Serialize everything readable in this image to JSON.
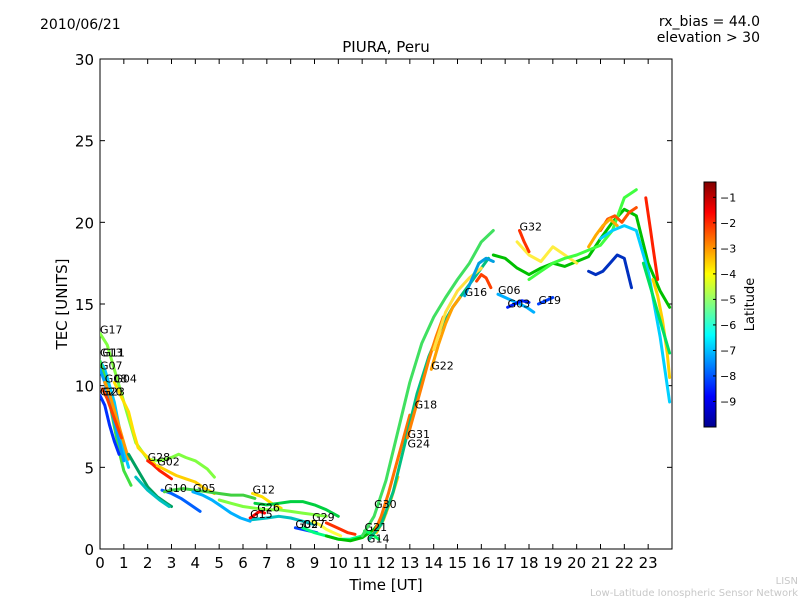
{
  "header": {
    "date": "2010/06/21",
    "params": [
      "rx_bias = 44.0",
      "elevation > 30"
    ]
  },
  "footer": {
    "line1": "LISN",
    "line2": "Low-Latitude Ionospheric Sensor Network"
  },
  "colors": {
    "colormap": [
      "#00008f",
      "#0000ff",
      "#0080ff",
      "#00ffff",
      "#80ff80",
      "#ffff00",
      "#ff8000",
      "#ff0000",
      "#800000"
    ]
  },
  "chart_data": {
    "type": "scatter",
    "title": "PIURA, Peru",
    "xlabel": "Time [UT]",
    "ylabel": "TEC [UNITS]",
    "xlim": [
      0,
      24
    ],
    "ylim": [
      0,
      30
    ],
    "xticks": [
      "0",
      "1",
      "2",
      "3",
      "4",
      "5",
      "6",
      "7",
      "8",
      "9",
      "10",
      "11",
      "12",
      "13",
      "14",
      "15",
      "16",
      "17",
      "18",
      "19",
      "20",
      "21",
      "22",
      "23"
    ],
    "yticks": [
      "0",
      "5",
      "10",
      "15",
      "20",
      "25",
      "30"
    ],
    "grid": false,
    "colorbar": {
      "label": "Latitude",
      "min": -10,
      "max": -0.4,
      "ticks": [
        "-1",
        "-2",
        "-3",
        "-4",
        "-5",
        "-6",
        "-7",
        "-8",
        "-9"
      ]
    },
    "satellite_labels": [
      {
        "name": "G17",
        "x": 0.0,
        "y": 13.2
      },
      {
        "name": "G13",
        "x": 0.0,
        "y": 11.8
      },
      {
        "name": "G11",
        "x": 0.1,
        "y": 11.8
      },
      {
        "name": "G07",
        "x": 0.0,
        "y": 11.0
      },
      {
        "name": "G08",
        "x": 0.2,
        "y": 10.2
      },
      {
        "name": "G04",
        "x": 0.6,
        "y": 10.2
      },
      {
        "name": "G20",
        "x": 0.0,
        "y": 9.4
      },
      {
        "name": "G23",
        "x": 0.1,
        "y": 9.4
      },
      {
        "name": "G28",
        "x": 2.0,
        "y": 5.4
      },
      {
        "name": "G02",
        "x": 2.4,
        "y": 5.1
      },
      {
        "name": "G10",
        "x": 2.7,
        "y": 3.5
      },
      {
        "name": "G05",
        "x": 3.9,
        "y": 3.5
      },
      {
        "name": "G12",
        "x": 6.4,
        "y": 3.4
      },
      {
        "name": "G26",
        "x": 6.6,
        "y": 2.3
      },
      {
        "name": "G15",
        "x": 6.3,
        "y": 1.9
      },
      {
        "name": "G29",
        "x": 8.9,
        "y": 1.7
      },
      {
        "name": "G09",
        "x": 8.2,
        "y": 1.3
      },
      {
        "name": "G27",
        "x": 8.5,
        "y": 1.3
      },
      {
        "name": "G30",
        "x": 11.5,
        "y": 2.5
      },
      {
        "name": "G21",
        "x": 11.1,
        "y": 1.1
      },
      {
        "name": "G14",
        "x": 11.2,
        "y": 0.4
      },
      {
        "name": "G31",
        "x": 12.9,
        "y": 6.8
      },
      {
        "name": "G24",
        "x": 12.9,
        "y": 6.2
      },
      {
        "name": "G18",
        "x": 13.2,
        "y": 8.6
      },
      {
        "name": "G22",
        "x": 13.9,
        "y": 11.0
      },
      {
        "name": "G16",
        "x": 15.3,
        "y": 15.5
      },
      {
        "name": "G06",
        "x": 16.7,
        "y": 15.6
      },
      {
        "name": "G03",
        "x": 17.1,
        "y": 14.8
      },
      {
        "name": "G19",
        "x": 18.4,
        "y": 15.0
      },
      {
        "name": "G32",
        "x": 17.6,
        "y": 19.5
      }
    ],
    "series": [
      {
        "color": "#80ff40",
        "x": [
          0,
          0.3,
          0.6,
          0.9,
          1.1,
          1.3,
          1.5,
          2,
          2.5,
          3,
          3.3,
          3.6,
          4,
          4.5,
          4.8
        ],
        "y": [
          13.2,
          12.5,
          11,
          9.5,
          8.5,
          7.5,
          6.5,
          5.5,
          5.4,
          5.6,
          5.8,
          5.6,
          5.4,
          4.9,
          4.4
        ]
      },
      {
        "color": "#00c8ff",
        "x": [
          0,
          0.2,
          0.4,
          0.6,
          0.8,
          1.0,
          1.2
        ],
        "y": [
          11.5,
          11.0,
          10.0,
          9.0,
          7.5,
          6.0,
          5.0
        ]
      },
      {
        "color": "#40e040",
        "x": [
          0,
          0.2,
          0.4,
          0.6,
          0.8,
          1.0,
          1.2,
          1.3
        ],
        "y": [
          11.5,
          10.5,
          9.0,
          7.5,
          6.0,
          4.8,
          4.2,
          3.9
        ]
      },
      {
        "color": "#00a0ff",
        "x": [
          0,
          0.2,
          0.4,
          0.6,
          0.8,
          1.0
        ],
        "y": [
          11.0,
          10.2,
          9.0,
          7.8,
          6.6,
          5.4
        ]
      },
      {
        "color": "#ff9900",
        "x": [
          0.2,
          0.4,
          0.6,
          0.8,
          1.0,
          1.2
        ],
        "y": [
          10.2,
          9.5,
          8.5,
          7.5,
          6.5,
          5.5
        ]
      },
      {
        "color": "#ffe000",
        "x": [
          0.6,
          0.8,
          1.0,
          1.2,
          1.4,
          1.6,
          2.0,
          2.3
        ],
        "y": [
          10.2,
          9.6,
          9.0,
          8.4,
          7.2,
          6.2,
          5.6,
          5.2
        ]
      },
      {
        "color": "#0030ff",
        "x": [
          0,
          0.2,
          0.4,
          0.6,
          0.8
        ],
        "y": [
          9.4,
          8.8,
          7.6,
          6.6,
          5.8
        ]
      },
      {
        "color": "#ff4000",
        "x": [
          0.1,
          0.3,
          0.5,
          0.7,
          0.9
        ],
        "y": [
          9.8,
          9.2,
          8.4,
          7.6,
          6.8
        ]
      },
      {
        "color": "#ff2000",
        "x": [
          2.0,
          2.2,
          2.5,
          2.8,
          3.0
        ],
        "y": [
          5.4,
          5.2,
          4.8,
          4.5,
          4.3
        ]
      },
      {
        "color": "#ffd000",
        "x": [
          2.4,
          2.8,
          3.2,
          3.6,
          4.0,
          4.4,
          4.8
        ],
        "y": [
          5.1,
          4.8,
          4.5,
          4.3,
          4.1,
          3.7,
          3.4
        ]
      },
      {
        "color": "#00a060",
        "x": [
          1.2,
          1.6,
          2.0,
          2.4,
          2.8,
          3.0
        ],
        "y": [
          5.8,
          4.8,
          3.8,
          3.2,
          2.8,
          2.6
        ]
      },
      {
        "color": "#0060ff",
        "x": [
          2.6,
          3.0,
          3.4,
          3.8,
          4.2
        ],
        "y": [
          3.6,
          3.4,
          3.1,
          2.7,
          2.3
        ]
      },
      {
        "color": "#00c0c0",
        "x": [
          1.5,
          2.0,
          2.5,
          2.9
        ],
        "y": [
          4.4,
          3.6,
          3.0,
          2.6
        ]
      },
      {
        "color": "#40d040",
        "x": [
          2.7,
          3.0,
          3.5,
          4.0,
          4.5,
          5.0,
          5.5,
          6.0,
          6.5
        ],
        "y": [
          3.5,
          3.6,
          3.7,
          3.6,
          3.5,
          3.4,
          3.3,
          3.3,
          3.1
        ]
      },
      {
        "color": "#00b0ff",
        "x": [
          3.9,
          4.3,
          4.7,
          5.1,
          5.5,
          5.9,
          6.3
        ],
        "y": [
          3.5,
          3.3,
          3.0,
          2.6,
          2.2,
          1.9,
          1.7
        ]
      },
      {
        "color": "#ffe000",
        "x": [
          6.4,
          6.8,
          7.2,
          7.6
        ],
        "y": [
          3.4,
          3.2,
          2.8,
          2.5
        ]
      },
      {
        "color": "#80ff40",
        "x": [
          5.0,
          5.5,
          6.0,
          6.5,
          7.0,
          7.5,
          8.0,
          8.5,
          9.0,
          9.5
        ],
        "y": [
          3.0,
          2.8,
          2.6,
          2.5,
          2.4,
          2.4,
          2.3,
          2.2,
          2.1,
          2.0
        ]
      },
      {
        "color": "#00c0c0",
        "x": [
          6.4,
          7.0,
          7.5,
          8.0,
          8.5,
          9.0
        ],
        "y": [
          1.8,
          1.9,
          2.0,
          1.9,
          1.7,
          1.5
        ]
      },
      {
        "color": "#ff0000",
        "x": [
          6.3,
          6.5,
          6.7,
          6.9
        ],
        "y": [
          1.9,
          2.1,
          2.3,
          2.2
        ]
      },
      {
        "color": "#00d040",
        "x": [
          6.5,
          7.0,
          7.5,
          8.0,
          8.5,
          9.0,
          9.5,
          10.0
        ],
        "y": [
          2.8,
          2.7,
          2.8,
          2.9,
          2.9,
          2.7,
          2.4,
          2.0
        ]
      },
      {
        "color": "#ffff40",
        "x": [
          8.9,
          9.2,
          9.5,
          9.8,
          10.1
        ],
        "y": [
          1.7,
          1.5,
          1.2,
          1.0,
          0.8
        ]
      },
      {
        "color": "#ff3000",
        "x": [
          9.5,
          9.8,
          10.1,
          10.4,
          10.7
        ],
        "y": [
          1.6,
          1.4,
          1.2,
          1.0,
          0.9
        ]
      },
      {
        "color": "#0040ff",
        "x": [
          8.2,
          8.5,
          8.8,
          9.1
        ],
        "y": [
          1.3,
          1.2,
          1.1,
          1.0
        ]
      },
      {
        "color": "#00ff80",
        "x": [
          8.5,
          9.0,
          9.5,
          10.0,
          10.5,
          11.0
        ],
        "y": [
          1.3,
          1.0,
          0.8,
          0.6,
          0.6,
          0.8
        ]
      },
      {
        "color": "#00c000",
        "x": [
          9.5,
          10.0,
          10.5,
          11.0,
          11.5,
          12.0
        ],
        "y": [
          0.8,
          0.6,
          0.5,
          0.7,
          1.2,
          2.2
        ]
      },
      {
        "color": "#00ff60",
        "x": [
          11.1,
          11.3,
          11.5,
          11.7
        ],
        "y": [
          1.1,
          1.0,
          0.8,
          0.6
        ]
      },
      {
        "color": "#ff7000",
        "x": [
          11.5,
          11.8,
          12.1,
          12.4,
          12.7,
          13.0
        ],
        "y": [
          1.0,
          2.0,
          3.4,
          5.0,
          6.6,
          8.2
        ]
      },
      {
        "color": "#ffcc00",
        "x": [
          11.6,
          11.9,
          12.2,
          12.5
        ],
        "y": [
          1.0,
          1.8,
          3.0,
          4.4
        ]
      },
      {
        "color": "#40e060",
        "x": [
          11.0,
          11.5,
          12.0,
          12.5,
          13.0,
          13.5,
          14.0,
          14.5,
          15.0,
          15.5,
          16.0,
          16.5
        ],
        "y": [
          0.8,
          2.0,
          4.2,
          7.2,
          10.2,
          12.6,
          14.2,
          15.4,
          16.5,
          17.5,
          18.8,
          19.5
        ]
      },
      {
        "color": "#00c080",
        "x": [
          11.3,
          11.8,
          12.3,
          12.8,
          13.3,
          13.8,
          14.3,
          14.8,
          15.3,
          15.8,
          16.3
        ],
        "y": [
          0.6,
          1.5,
          3.5,
          6.5,
          9.5,
          11.8,
          13.5,
          14.8,
          15.8,
          16.8,
          17.8
        ]
      },
      {
        "color": "#ff8000",
        "x": [
          12.9,
          13.2,
          13.5,
          13.8,
          14.1,
          14.4
        ],
        "y": [
          6.8,
          8.4,
          10.0,
          11.6,
          13.0,
          14.2
        ]
      },
      {
        "color": "#ffa000",
        "x": [
          13.9,
          14.2,
          14.5,
          14.8,
          15.1
        ],
        "y": [
          11.0,
          12.5,
          13.8,
          14.8,
          15.4
        ]
      },
      {
        "color": "#ffe040",
        "x": [
          14.0,
          14.5,
          15.0,
          15.5,
          16.0
        ],
        "y": [
          12.2,
          14.5,
          15.8,
          16.6,
          17.2
        ]
      },
      {
        "color": "#00a0e0",
        "x": [
          15.3,
          15.6,
          15.9,
          16.2,
          16.5
        ],
        "y": [
          15.5,
          16.5,
          17.5,
          17.8,
          17.6
        ]
      },
      {
        "color": "#ff4000",
        "x": [
          15.8,
          16.0,
          16.2,
          16.4
        ],
        "y": [
          16.4,
          16.8,
          16.6,
          16.0
        ]
      },
      {
        "color": "#00c000",
        "x": [
          16.5,
          17.0,
          17.5,
          18.0,
          18.5,
          19.0,
          19.5,
          20.0,
          20.5,
          21.0,
          21.5,
          22.0,
          22.5,
          23.0,
          23.5,
          23.9
        ],
        "y": [
          18.0,
          17.8,
          17.2,
          16.8,
          17.2,
          17.5,
          17.3,
          17.6,
          17.9,
          19.0,
          20.0,
          20.8,
          20.4,
          17.5,
          15.8,
          14.8
        ]
      },
      {
        "color": "#00b0ff",
        "x": [
          16.7,
          17.0,
          17.3,
          17.6,
          17.9,
          18.2
        ],
        "y": [
          15.6,
          15.4,
          15.2,
          15.0,
          14.8,
          14.5
        ]
      },
      {
        "color": "#0020ff",
        "x": [
          17.1,
          17.4,
          17.7,
          18.0
        ],
        "y": [
          14.8,
          15.0,
          15.2,
          15.1
        ]
      },
      {
        "color": "#0040ff",
        "x": [
          18.4,
          18.7,
          19.0
        ],
        "y": [
          15.0,
          15.2,
          15.4
        ]
      },
      {
        "color": "#ffee40",
        "x": [
          17.5,
          18.0,
          18.5,
          19.0,
          19.5,
          20.0
        ],
        "y": [
          18.8,
          18.0,
          17.6,
          18.5,
          18.0,
          17.5
        ]
      },
      {
        "color": "#ff3000",
        "x": [
          17.6,
          17.8,
          18.0
        ],
        "y": [
          19.5,
          18.8,
          18.2
        ]
      },
      {
        "color": "#40ff40",
        "x": [
          18.0,
          18.5,
          19.0,
          19.5,
          20.0,
          20.5,
          21.0,
          21.5,
          22.0,
          22.5
        ],
        "y": [
          16.5,
          17.0,
          17.5,
          17.8,
          18.0,
          18.3,
          18.6,
          19.5,
          21.5,
          22.0
        ]
      },
      {
        "color": "#0030c0",
        "x": [
          20.5,
          20.8,
          21.1,
          21.4,
          21.7,
          22.0,
          22.3
        ],
        "y": [
          17.0,
          16.8,
          17.0,
          17.5,
          18.0,
          17.8,
          16.0
        ]
      },
      {
        "color": "#ff5000",
        "x": [
          21.0,
          21.3,
          21.6,
          21.9,
          22.2,
          22.5
        ],
        "y": [
          19.5,
          20.2,
          20.4,
          20.0,
          20.6,
          20.9
        ]
      },
      {
        "color": "#ffaa00",
        "x": [
          20.5,
          20.8,
          21.1,
          21.4,
          21.7
        ],
        "y": [
          18.5,
          19.2,
          19.8,
          20.2,
          19.8
        ]
      },
      {
        "color": "#00d0ff",
        "x": [
          21.0,
          21.5,
          22.0,
          22.5,
          23.0,
          23.5,
          23.9
        ],
        "y": [
          19.0,
          19.5,
          19.8,
          19.5,
          17.0,
          13.0,
          9.0
        ]
      },
      {
        "color": "#ff2000",
        "x": [
          22.9,
          23.0,
          23.1,
          23.2,
          23.3,
          23.4
        ],
        "y": [
          21.5,
          20.5,
          19.5,
          18.5,
          17.5,
          16.5
        ]
      },
      {
        "color": "#ffd000",
        "x": [
          23.2,
          23.4,
          23.6,
          23.8,
          23.9
        ],
        "y": [
          16.5,
          15.5,
          14.0,
          12.0,
          10.5
        ]
      },
      {
        "color": "#00e060",
        "x": [
          22.8,
          23.1,
          23.4,
          23.7,
          23.9
        ],
        "y": [
          17.5,
          16.0,
          14.5,
          13.0,
          12.0
        ]
      }
    ]
  }
}
